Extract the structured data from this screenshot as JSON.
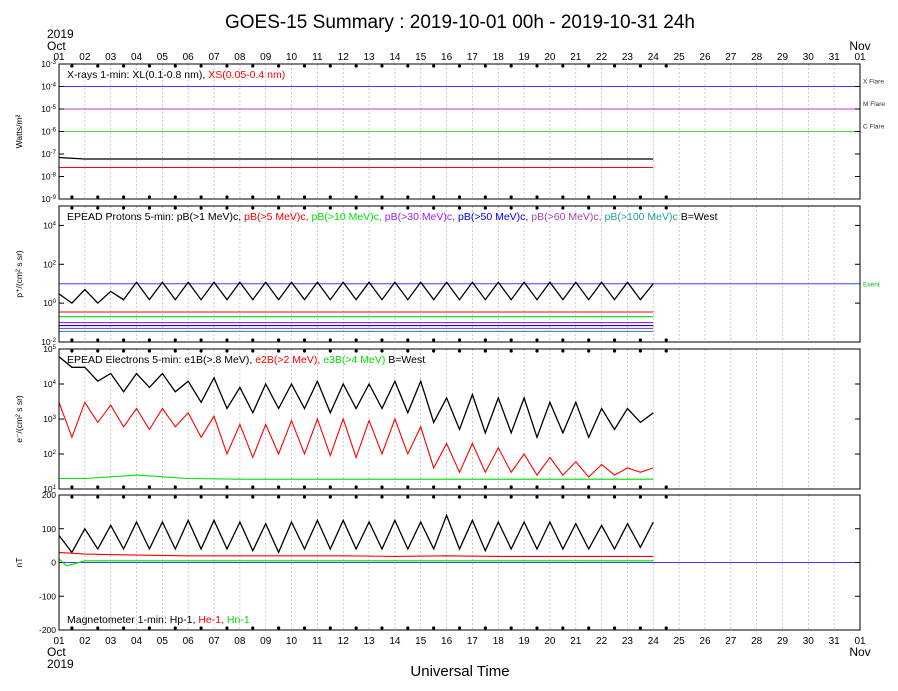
{
  "title": "GOES-15 Summary : 2019-10-01 00h - 2019-10-31 24h",
  "xlabel": "Universal Time",
  "top_left": {
    "year": "2019",
    "month": "Oct",
    "day": "01"
  },
  "top_right": {
    "month": "Nov",
    "day": "01"
  },
  "bottom_left": {
    "day": "01",
    "month": "Oct",
    "year": "2019"
  },
  "bottom_right": {
    "day": "01",
    "month": "Nov"
  },
  "day_ticks_top": [
    "02",
    "03",
    "04",
    "05",
    "06",
    "07",
    "08",
    "09",
    "10",
    "11",
    "12",
    "13",
    "14",
    "15",
    "16",
    "17",
    "18",
    "19",
    "20",
    "21",
    "22",
    "23",
    "24",
    "25",
    "26",
    "27",
    "28",
    "29",
    "30",
    "31"
  ],
  "day_ticks_bottom": [
    "02",
    "03",
    "04",
    "05",
    "06",
    "07",
    "08",
    "09",
    "10",
    "11",
    "12",
    "13",
    "14",
    "15",
    "16",
    "17",
    "18",
    "19",
    "20",
    "21",
    "22",
    "23",
    "24",
    "25",
    "26",
    "27",
    "28",
    "29",
    "30",
    "31"
  ],
  "colors": {
    "black": "#000000",
    "red": "#ff0000",
    "green": "#00dd00",
    "purple": "#a020f0",
    "blue": "#0000ff",
    "magenta": "#b040b0",
    "teal": "#20a0a0",
    "grid": "#b8b8b8",
    "xline": "#4040ff",
    "mline": "#c040c0",
    "cline": "#40dd40"
  },
  "chart_data": [
    {
      "type": "line",
      "name": "xrays",
      "ylabel": "Watts/m²",
      "yscale": "log",
      "ylim": [
        1e-09,
        0.001
      ],
      "yticks": [
        {
          "base": "10",
          "exp": "-3"
        },
        {
          "base": "10",
          "exp": "-4"
        },
        {
          "base": "10",
          "exp": "-5"
        },
        {
          "base": "10",
          "exp": "-6"
        },
        {
          "base": "10",
          "exp": "-7"
        },
        {
          "base": "10",
          "exp": "-8"
        },
        {
          "base": "10",
          "exp": "-9"
        }
      ],
      "legend": {
        "prefix": "X-rays  1-min: XL(0.1-0.8 nm),",
        "entries": [
          {
            "label": "XS(0.05-0.4 nm)",
            "color": "#ff0000"
          }
        ]
      },
      "thresholds": [
        {
          "label": "X Flare",
          "value": 0.0001,
          "color": "#4040ff"
        },
        {
          "label": "M Flare",
          "value": 1e-05,
          "color": "#c040c0"
        },
        {
          "label": "C Flare",
          "value": 1e-06,
          "color": "#40dd40"
        }
      ],
      "series": [
        {
          "name": "XL(0.1-0.8 nm)",
          "color": "#000000",
          "x": [
            1,
            2,
            4,
            6,
            8,
            10,
            12,
            14,
            16,
            18,
            20,
            22,
            24
          ],
          "y": [
            7e-08,
            6e-08,
            6e-08,
            6e-08,
            6e-08,
            6e-08,
            6e-08,
            6e-08,
            6e-08,
            6e-08,
            6e-08,
            6e-08,
            6e-08
          ]
        },
        {
          "name": "XS(0.05-0.4 nm)",
          "color": "#ff0000",
          "x": [
            1,
            2,
            4,
            6,
            8,
            10,
            12,
            14,
            16,
            18,
            20,
            22,
            24
          ],
          "y": [
            2.5e-08,
            2.5e-08,
            2.5e-08,
            2.5e-08,
            2.5e-08,
            2.5e-08,
            2.5e-08,
            2.5e-08,
            2.5e-08,
            2.5e-08,
            2.5e-08,
            2.5e-08,
            2.5e-08
          ]
        }
      ]
    },
    {
      "type": "line",
      "name": "protons",
      "ylabel": "p⁺/(cm² s sr)",
      "yscale": "log",
      "ylim": [
        0.01,
        100000
      ],
      "yticks": [
        {
          "base": "10",
          "exp": "4"
        },
        {
          "base": "10",
          "exp": "2"
        },
        {
          "base": "10",
          "exp": "0"
        },
        {
          "base": "10",
          "exp": "-2"
        }
      ],
      "legend": {
        "prefix": "EPEAD Protons 5-min: pB(>1 MeV)c,",
        "entries": [
          {
            "label": "pB(>5 MeV)c,",
            "color": "#ff0000"
          },
          {
            "label": "pB(>10 MeV)c,",
            "color": "#00dd00"
          },
          {
            "label": "pB(>30 MeV)c,",
            "color": "#a020f0"
          },
          {
            "label": "pB(>50 MeV)c,",
            "color": "#0000ff"
          },
          {
            "label": "pB(>60 MeV)c,",
            "color": "#b040b0"
          },
          {
            "label": "pB(>100 MeV)c",
            "color": "#20a0a0"
          }
        ],
        "suffix": "B=West"
      },
      "thresholds": [
        {
          "label": "Event",
          "value": 10,
          "color": "#4040ff"
        }
      ],
      "series": [
        {
          "name": "pB(>1 MeV)c",
          "color": "#000000",
          "x": [
            1,
            1.5,
            2,
            2.5,
            3,
            3.5,
            4,
            4.5,
            5,
            5.5,
            6,
            6.5,
            7,
            7.5,
            8,
            8.5,
            9,
            9.5,
            10,
            10.5,
            11,
            11.5,
            12,
            12.5,
            13,
            13.5,
            14,
            14.5,
            15,
            15.5,
            16,
            16.5,
            17,
            17.5,
            18,
            18.5,
            19,
            19.5,
            20,
            20.5,
            21,
            21.5,
            22,
            22.5,
            23,
            23.5,
            24
          ],
          "y": [
            3,
            1,
            5,
            1,
            4,
            1.5,
            12,
            1.5,
            12,
            1.5,
            12,
            1.5,
            12,
            1.5,
            12,
            1.5,
            12,
            1.5,
            12,
            1.5,
            12,
            1.5,
            12,
            1.5,
            12,
            1.5,
            12,
            1.5,
            12,
            1.5,
            12,
            1.5,
            12,
            1.5,
            12,
            1.5,
            12,
            1.5,
            12,
            1.5,
            12,
            1.5,
            12,
            1.5,
            12,
            1.5,
            10
          ]
        },
        {
          "name": "pB(>5 MeV)c",
          "color": "#ff0000",
          "x": [
            1,
            24
          ],
          "y": [
            0.35,
            0.35
          ]
        },
        {
          "name": "pB(>10 MeV)c",
          "color": "#00dd00",
          "x": [
            1,
            24
          ],
          "y": [
            0.2,
            0.2
          ]
        },
        {
          "name": "pB(>30 MeV)c",
          "color": "#a020f0",
          "x": [
            1,
            24
          ],
          "y": [
            0.1,
            0.1
          ]
        },
        {
          "name": "pB(>50 MeV)c",
          "color": "#0000ff",
          "x": [
            1,
            24
          ],
          "y": [
            0.07,
            0.07
          ]
        },
        {
          "name": "pB(>60 MeV)c",
          "color": "#b040b0",
          "x": [
            1,
            24
          ],
          "y": [
            0.05,
            0.05
          ]
        },
        {
          "name": "pB(>100 MeV)c",
          "color": "#20a0a0",
          "x": [
            1,
            24
          ],
          "y": [
            0.035,
            0.035
          ]
        }
      ]
    },
    {
      "type": "line",
      "name": "electrons",
      "ylabel": "e⁻/(cm² s sr)",
      "yscale": "log",
      "ylim": [
        10,
        100000
      ],
      "yticks": [
        {
          "base": "10",
          "exp": "5"
        },
        {
          "base": "10",
          "exp": "4"
        },
        {
          "base": "10",
          "exp": "3"
        },
        {
          "base": "10",
          "exp": "2"
        },
        {
          "base": "10",
          "exp": "1"
        }
      ],
      "legend": {
        "prefix": "EPEAD Electrons 5-min: e1B(>.8 MeV),",
        "entries": [
          {
            "label": "e2B(>2 MeV),",
            "color": "#ff0000"
          },
          {
            "label": "e3B(>4 MeV)",
            "color": "#00dd00"
          }
        ],
        "suffix": "B=West"
      },
      "series": [
        {
          "name": "e1B(>.8 MeV)",
          "color": "#000000",
          "x": [
            1,
            1.5,
            2,
            2.5,
            3,
            3.5,
            4,
            4.5,
            5,
            5.5,
            6,
            6.5,
            7,
            7.5,
            8,
            8.5,
            9,
            9.5,
            10,
            10.5,
            11,
            11.5,
            12,
            12.5,
            13,
            13.5,
            14,
            14.5,
            15,
            15.5,
            16,
            16.5,
            17,
            17.5,
            18,
            18.5,
            19,
            19.5,
            20,
            20.5,
            21,
            21.5,
            22,
            22.5,
            23,
            23.5,
            24
          ],
          "y": [
            60000,
            30000,
            30000,
            12000,
            20000,
            6000,
            20000,
            8000,
            20000,
            6000,
            12000,
            3000,
            15000,
            2000,
            8000,
            1500,
            10000,
            2000,
            10000,
            2000,
            12000,
            1500,
            10000,
            2000,
            10000,
            2000,
            12000,
            1500,
            12000,
            800,
            4000,
            500,
            5000,
            400,
            4000,
            400,
            4000,
            300,
            3000,
            400,
            3000,
            300,
            2000,
            500,
            2000,
            800,
            1500
          ]
        },
        {
          "name": "e2B(>2 MeV)",
          "color": "#ff0000",
          "x": [
            1,
            1.5,
            2,
            2.5,
            3,
            3.5,
            4,
            4.5,
            5,
            5.5,
            6,
            6.5,
            7,
            7.5,
            8,
            8.5,
            9,
            9.5,
            10,
            10.5,
            11,
            11.5,
            12,
            12.5,
            13,
            13.5,
            14,
            14.5,
            15,
            15.5,
            16,
            16.5,
            17,
            17.5,
            18,
            18.5,
            19,
            19.5,
            20,
            20.5,
            21,
            21.5,
            22,
            22.5,
            23,
            23.5,
            24
          ],
          "y": [
            3000,
            300,
            3000,
            800,
            2500,
            600,
            2000,
            500,
            2000,
            600,
            1500,
            300,
            1200,
            100,
            700,
            80,
            700,
            100,
            900,
            100,
            1000,
            90,
            1000,
            80,
            900,
            100,
            1000,
            100,
            600,
            40,
            200,
            30,
            200,
            30,
            150,
            30,
            100,
            25,
            80,
            25,
            60,
            22,
            50,
            25,
            40,
            30,
            40
          ]
        },
        {
          "name": "e3B(>4 MeV)",
          "color": "#00dd00",
          "x": [
            1,
            2,
            4,
            6,
            8,
            10,
            12,
            14,
            16,
            18,
            20,
            22,
            24
          ],
          "y": [
            20,
            20,
            25,
            20,
            19,
            19,
            19,
            19,
            19,
            19,
            19,
            19,
            19
          ]
        }
      ]
    },
    {
      "type": "line",
      "name": "magnetometer",
      "ylabel": "nT",
      "yscale": "linear",
      "ylim": [
        -200,
        200
      ],
      "yticks": [
        {
          "base": "200",
          "exp": ""
        },
        {
          "base": "100",
          "exp": ""
        },
        {
          "base": "0",
          "exp": ""
        },
        {
          "base": "-100",
          "exp": ""
        },
        {
          "base": "-200",
          "exp": ""
        }
      ],
      "legend": {
        "prefix": "Magnetometer  1-min: Hp-1,",
        "entries": [
          {
            "label": "He-1,",
            "color": "#ff0000"
          },
          {
            "label": "Hn-1",
            "color": "#00dd00"
          }
        ]
      },
      "thresholds": [
        {
          "label": "",
          "value": 0,
          "color": "#4040ff"
        }
      ],
      "series": [
        {
          "name": "Hp-1",
          "color": "#000000",
          "x": [
            1,
            1.5,
            2,
            2.5,
            3,
            3.5,
            4,
            4.5,
            5,
            5.5,
            6,
            6.5,
            7,
            7.5,
            8,
            8.5,
            9,
            9.5,
            10,
            10.5,
            11,
            11.5,
            12,
            12.5,
            13,
            13.5,
            14,
            14.5,
            15,
            15.5,
            16,
            16.5,
            17,
            17.5,
            18,
            18.5,
            19,
            19.5,
            20,
            20.5,
            21,
            21.5,
            22,
            22.5,
            23,
            23.5,
            24
          ],
          "y": [
            80,
            30,
            100,
            40,
            110,
            40,
            120,
            40,
            120,
            40,
            125,
            40,
            125,
            40,
            120,
            35,
            115,
            30,
            120,
            40,
            125,
            40,
            125,
            40,
            120,
            40,
            125,
            40,
            120,
            40,
            140,
            40,
            125,
            35,
            120,
            40,
            120,
            40,
            120,
            40,
            115,
            40,
            110,
            40,
            115,
            45,
            120
          ]
        },
        {
          "name": "He-1",
          "color": "#ff0000",
          "x": [
            1,
            2,
            4,
            6,
            8,
            10,
            12,
            14,
            16,
            18,
            20,
            22,
            24
          ],
          "y": [
            30,
            25,
            22,
            20,
            20,
            20,
            20,
            18,
            20,
            18,
            18,
            18,
            18
          ]
        },
        {
          "name": "Hn-1",
          "color": "#00dd00",
          "x": [
            1,
            1.3,
            2,
            4,
            6,
            8,
            10,
            12,
            14,
            16,
            18,
            20,
            22,
            24
          ],
          "y": [
            10,
            -10,
            5,
            5,
            5,
            5,
            5,
            5,
            5,
            5,
            5,
            5,
            5,
            5
          ]
        }
      ]
    }
  ]
}
